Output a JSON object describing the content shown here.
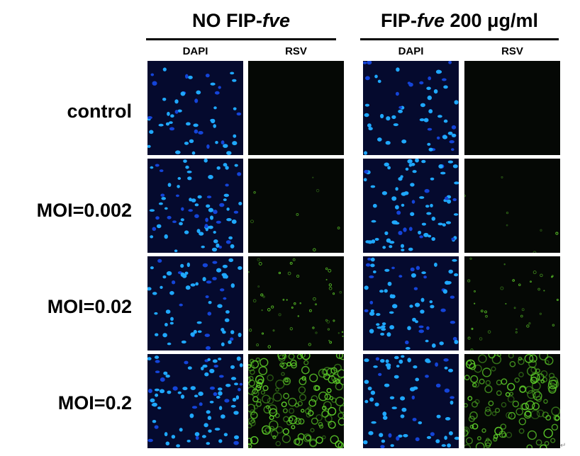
{
  "groups": [
    {
      "title_plain": "NO FIP-",
      "title_italic": "fve",
      "title_tail": ""
    },
    {
      "title_plain": "FIP-",
      "title_italic": "fve",
      "title_tail": " 200 μg/ml"
    }
  ],
  "channels": [
    "DAPI",
    "RSV"
  ],
  "rows": [
    "control",
    "MOI=0.002",
    "MOI=0.02",
    "MOI=0.2"
  ],
  "panels": [
    {
      "row": "control",
      "group": "NO FIP-fve",
      "channel": "DAPI",
      "nuclei_density": 0.55,
      "rsv_signal": 0.0
    },
    {
      "row": "control",
      "group": "NO FIP-fve",
      "channel": "RSV",
      "nuclei_density": 0.0,
      "rsv_signal": 0.0
    },
    {
      "row": "control",
      "group": "FIP-fve 200 μg/ml",
      "channel": "DAPI",
      "nuclei_density": 0.6,
      "rsv_signal": 0.0
    },
    {
      "row": "control",
      "group": "FIP-fve 200 μg/ml",
      "channel": "RSV",
      "nuclei_density": 0.0,
      "rsv_signal": 0.0
    },
    {
      "row": "MOI=0.002",
      "group": "NO FIP-fve",
      "channel": "DAPI",
      "nuclei_density": 0.8,
      "rsv_signal": 0.0
    },
    {
      "row": "MOI=0.002",
      "group": "NO FIP-fve",
      "channel": "RSV",
      "nuclei_density": 0.0,
      "rsv_signal": 0.03
    },
    {
      "row": "MOI=0.002",
      "group": "FIP-fve 200 μg/ml",
      "channel": "DAPI",
      "nuclei_density": 0.85,
      "rsv_signal": 0.0
    },
    {
      "row": "MOI=0.002",
      "group": "FIP-fve 200 μg/ml",
      "channel": "RSV",
      "nuclei_density": 0.0,
      "rsv_signal": 0.03
    },
    {
      "row": "MOI=0.02",
      "group": "NO FIP-fve",
      "channel": "DAPI",
      "nuclei_density": 0.7,
      "rsv_signal": 0.0
    },
    {
      "row": "MOI=0.02",
      "group": "NO FIP-fve",
      "channel": "RSV",
      "nuclei_density": 0.0,
      "rsv_signal": 0.3
    },
    {
      "row": "MOI=0.02",
      "group": "FIP-fve 200 μg/ml",
      "channel": "DAPI",
      "nuclei_density": 0.75,
      "rsv_signal": 0.0
    },
    {
      "row": "MOI=0.02",
      "group": "FIP-fve 200 μg/ml",
      "channel": "RSV",
      "nuclei_density": 0.0,
      "rsv_signal": 0.2
    },
    {
      "row": "MOI=0.2",
      "group": "NO FIP-fve",
      "channel": "DAPI",
      "nuclei_density": 0.9,
      "rsv_signal": 0.0
    },
    {
      "row": "MOI=0.2",
      "group": "NO FIP-fve",
      "channel": "RSV",
      "nuclei_density": 0.0,
      "rsv_signal": 0.95
    },
    {
      "row": "MOI=0.2",
      "group": "FIP-fve 200 μg/ml",
      "channel": "DAPI",
      "nuclei_density": 0.75,
      "rsv_signal": 0.0
    },
    {
      "row": "MOI=0.2",
      "group": "FIP-fve 200 μg/ml",
      "channel": "RSV",
      "nuclei_density": 0.0,
      "rsv_signal": 0.75
    }
  ],
  "colors": {
    "dapi_background": "#050a2e",
    "dapi_nucleus": "#1fa8ff",
    "dapi_nucleus_dim": "#1444d8",
    "rsv_background": "#050805",
    "rsv_signal": "#5fd12a"
  },
  "footer_mark": "↵"
}
